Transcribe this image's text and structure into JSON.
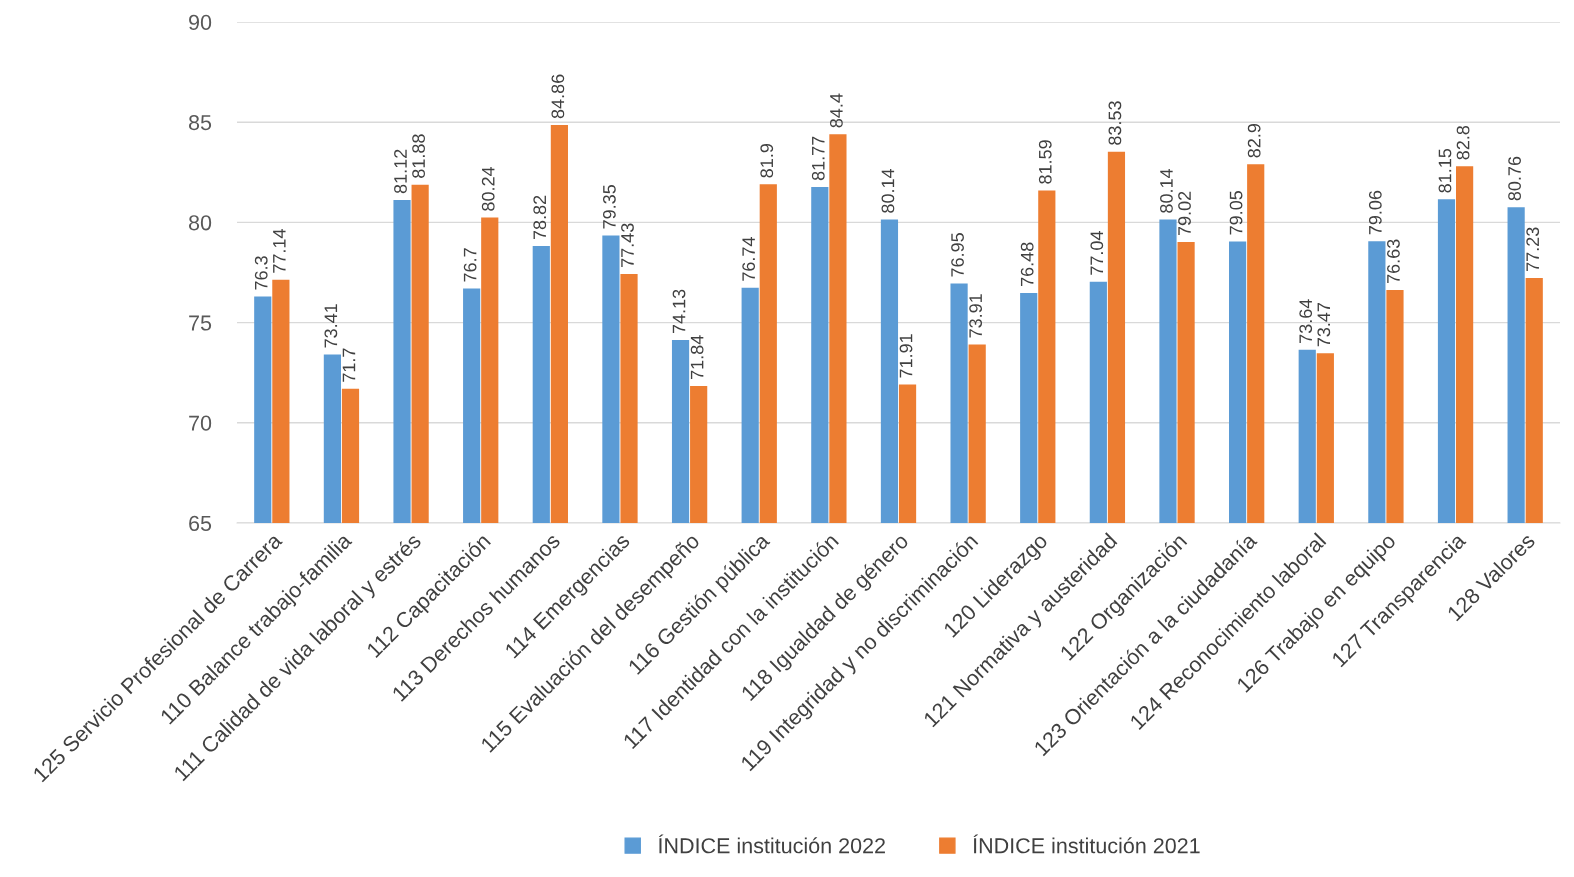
{
  "chart_data": {
    "type": "bar",
    "categories": [
      "125 Servicio Profesional de Carrera",
      "110 Balance trabajo-familia",
      "111 Calidad de vida laboral y estrés",
      "112 Capacitación",
      "113 Derechos humanos",
      "114 Emergencias",
      "115 Evaluación del desempeño",
      "116 Gestión pública",
      "117 Identidad con la institución",
      "118 Igualdad de género",
      "119 Integridad y no discriminación",
      "120 Liderazgo",
      "121 Normativa y austeridad",
      "122 Organización",
      "123 Orientación a la ciudadanía",
      "124 Reconocimiento laboral",
      "126 Trabajo en equipo",
      "127 Transparencia",
      "128 Valores"
    ],
    "series": [
      {
        "name": "ÍNDICE institución 2022",
        "color": "#5b9bd5",
        "values": [
          76.3,
          73.41,
          81.12,
          76.7,
          78.82,
          79.35,
          74.13,
          76.74,
          81.77,
          80.14,
          76.95,
          76.48,
          77.04,
          80.14,
          79.05,
          73.64,
          79.06,
          81.15,
          80.76
        ]
      },
      {
        "name": "ÍNDICE institución 2021",
        "color": "#ed7d31",
        "values": [
          77.14,
          71.7,
          81.88,
          80.24,
          84.86,
          77.43,
          71.84,
          81.9,
          84.4,
          71.91,
          73.91,
          81.59,
          83.53,
          79.02,
          82.9,
          73.47,
          76.63,
          82.8,
          77.23
        ]
      }
    ],
    "ylim": [
      65,
      90
    ],
    "yticks": [
      65,
      70,
      75,
      80,
      85,
      90
    ],
    "grid": "y",
    "legend": "bottom",
    "data_labels": true
  }
}
